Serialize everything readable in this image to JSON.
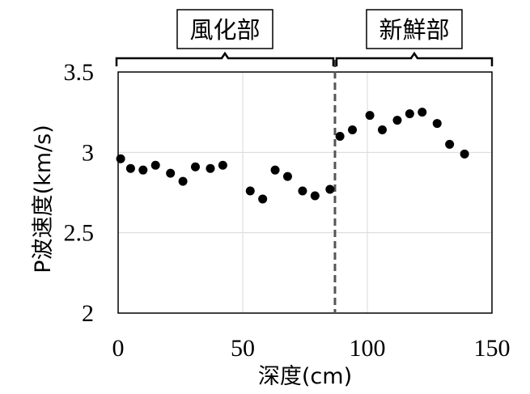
{
  "chart_data": {
    "type": "scatter",
    "xlabel": "深度(cm)",
    "ylabel": "P波速度(km/s)",
    "xlim": [
      0,
      150
    ],
    "ylim": [
      2,
      3.5
    ],
    "x_ticks": [
      "0",
      "50",
      "100",
      "150"
    ],
    "y_ticks": [
      "2",
      "2.5",
      "3",
      "3.5"
    ],
    "grid": true,
    "divider_x": 87,
    "divider_style": "dashed",
    "zones": [
      {
        "label": "風化部",
        "x_range": [
          0,
          87
        ]
      },
      {
        "label": "新鮮部",
        "x_range": [
          87,
          150
        ]
      }
    ],
    "series": [
      {
        "x": [
          1,
          5,
          10,
          15,
          21,
          26,
          31,
          37,
          42,
          53,
          58,
          63,
          68,
          74,
          79,
          85,
          89,
          94,
          101,
          106,
          112,
          117,
          122,
          128,
          133,
          139
        ],
        "y": [
          2.96,
          2.9,
          2.89,
          2.92,
          2.87,
          2.82,
          2.91,
          2.9,
          2.92,
          2.76,
          2.71,
          2.89,
          2.85,
          2.76,
          2.73,
          2.77,
          3.1,
          3.14,
          3.23,
          3.14,
          3.2,
          3.24,
          3.25,
          3.18,
          3.05,
          2.99
        ]
      }
    ]
  }
}
